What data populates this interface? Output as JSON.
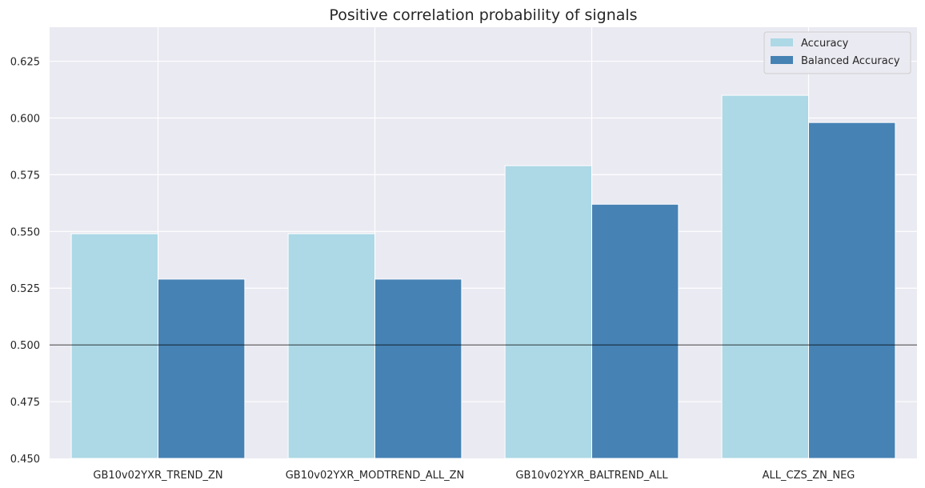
{
  "chart_data": {
    "type": "bar",
    "title": "Positive correlation probability of signals",
    "xlabel": "",
    "ylabel": "",
    "categories": [
      "GB10v02YXR_TREND_ZN",
      "GB10v02YXR_MODTREND_ALL_ZN",
      "GB10v02YXR_BALTREND_ALL",
      "ALL_CZS_ZN_NEG"
    ],
    "series": [
      {
        "name": "Accuracy",
        "color": "#add8e6",
        "values": [
          0.549,
          0.549,
          0.579,
          0.61
        ]
      },
      {
        "name": "Balanced Accuracy",
        "color": "#4682b4",
        "values": [
          0.529,
          0.529,
          0.562,
          0.598
        ]
      }
    ],
    "ylim": [
      0.45,
      0.64
    ],
    "yticks": [
      0.45,
      0.475,
      0.5,
      0.525,
      0.55,
      0.575,
      0.6,
      0.625
    ],
    "ytick_labels": [
      "0.450",
      "0.475",
      "0.500",
      "0.525",
      "0.550",
      "0.575",
      "0.600",
      "0.625"
    ],
    "reference_line": 0.5,
    "grid": true,
    "legend_position": "top-right"
  },
  "colors": {
    "plot_background": "#eaeaf2",
    "grid": "#ffffff",
    "reference_line": "#000000"
  }
}
